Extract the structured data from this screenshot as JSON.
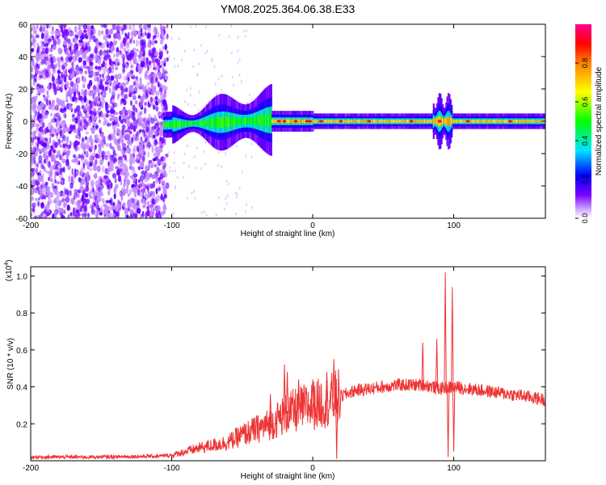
{
  "title": "YM08.2025.364.06.38.E33",
  "chart_data": [
    {
      "type": "heatmap",
      "xlabel": "Height of straight line (km)",
      "ylabel": "Frequency (Hz)",
      "xlim": [
        -200,
        165
      ],
      "ylim": [
        -60,
        60
      ],
      "xticks": [
        -200,
        -100,
        0,
        100
      ],
      "yticks": [
        60,
        40,
        20,
        0,
        -20,
        -40,
        -60
      ],
      "colorbar": {
        "label": "Normalized spectral amplitude",
        "range": [
          0,
          1
        ],
        "ticks": [
          "0.0",
          "0.2",
          "0.4",
          "0.6",
          "0.8"
        ],
        "colors": [
          "#ffffff",
          "#7a00ff",
          "#0000ff",
          "#00e5ff",
          "#00ff00",
          "#ffff00",
          "#ff8000",
          "#ff0000",
          "#ff0090"
        ]
      }
    },
    {
      "type": "line",
      "xlabel": "Height of straight line (km)",
      "ylabel": "SNR (10 * v/v)",
      "scale_label": "(x10",
      "scale_exp": "4",
      "scale_close": ")",
      "xlim": [
        -200,
        165
      ],
      "ylim": [
        0,
        1.05
      ],
      "xticks": [
        -200,
        -100,
        0,
        100
      ],
      "yticks": [
        "0.2",
        "0.4",
        "0.6",
        "0.8",
        "1.0"
      ],
      "color": "#ee3333",
      "envelope": {
        "x": [
          -200,
          -150,
          -110,
          -100,
          -90,
          -80,
          -60,
          -50,
          -40,
          -30,
          -20,
          -10,
          0,
          10,
          20,
          30,
          50,
          60,
          70,
          80,
          90,
          100,
          110,
          130,
          150,
          165
        ],
        "y": [
          0.02,
          0.02,
          0.025,
          0.03,
          0.05,
          0.07,
          0.1,
          0.14,
          0.17,
          0.2,
          0.25,
          0.28,
          0.3,
          0.32,
          0.35,
          0.38,
          0.4,
          0.41,
          0.41,
          0.41,
          0.39,
          0.4,
          0.39,
          0.37,
          0.35,
          0.33
        ]
      },
      "spikes": [
        {
          "x": -30,
          "y": 0.36
        },
        {
          "x": -20,
          "y": 0.52
        },
        {
          "x": -18,
          "y": 0.48
        },
        {
          "x": -10,
          "y": 0.44
        },
        {
          "x": 0,
          "y": 0.44
        },
        {
          "x": 10,
          "y": 0.48
        },
        {
          "x": 15,
          "y": 0.55
        },
        {
          "x": 78,
          "y": 0.64
        },
        {
          "x": 88,
          "y": 0.66
        },
        {
          "x": 94,
          "y": 1.02
        },
        {
          "x": 99,
          "y": 0.94
        }
      ],
      "dips": [
        {
          "x": 17,
          "y": 0.01
        },
        {
          "x": 96,
          "y": 0.02
        },
        {
          "x": 100,
          "y": 0.05
        }
      ]
    }
  ]
}
